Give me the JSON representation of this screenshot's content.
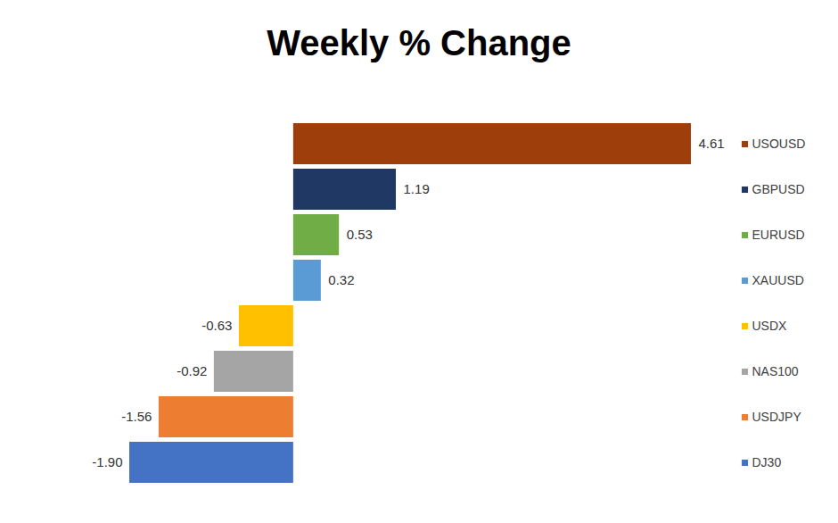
{
  "chart_data": {
    "type": "bar",
    "title": "Weekly % Change",
    "orientation": "horizontal",
    "categories": [
      "USOUSD",
      "GBPUSD",
      "EURUSD",
      "XAUUSD",
      "USDX",
      "NAS100",
      "USDJPY",
      "DJ30"
    ],
    "values": [
      4.61,
      1.19,
      0.53,
      0.32,
      -0.63,
      -0.92,
      -1.56,
      -1.9
    ],
    "value_labels": [
      "4.61",
      "1.19",
      "0.53",
      "0.32",
      "-0.63",
      "-0.92",
      "-1.56",
      "-1.90"
    ],
    "colors": [
      "#9E3F0B",
      "#203864",
      "#70AD47",
      "#5B9BD5",
      "#FFC000",
      "#A5A5A5",
      "#ED7D31",
      "#4472C4"
    ],
    "data_labels": true,
    "legend": "right",
    "tick_labels": false,
    "grid": false
  }
}
